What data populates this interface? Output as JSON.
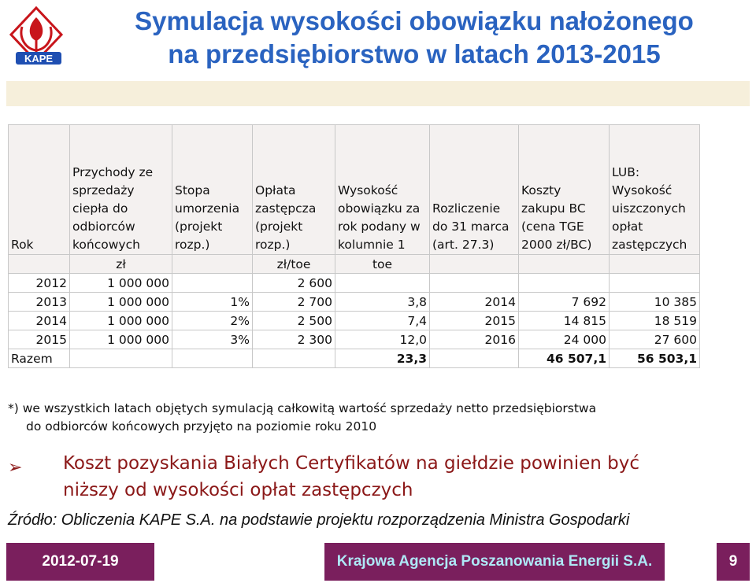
{
  "logo": {
    "text": "KAPE",
    "colors": {
      "red": "#c8151b",
      "blue": "#1f4fb2"
    }
  },
  "title": {
    "line1": "Symulacja wysokości obowiązku nałożonego",
    "line2": "na przedsiębiorstwo w latach 2013-2015"
  },
  "table": {
    "headers": [
      "Rok",
      "Przychody ze sprzedaży ciepła do odbiorców końcowych",
      "Stopa umorzenia (projekt rozp.)",
      "Opłata zastępcza (projekt rozp.)",
      "Wysokość obowiązku za rok podany w kolumnie 1",
      "Rozliczenie do 31 marca (art. 27.3)",
      "Koszty zakupu BC (cena TGE 2000 zł/BC)",
      "LUB: Wysokość uiszczonych opłat zastępczych"
    ],
    "units": [
      "",
      "zł",
      "",
      "zł/toe",
      "toe",
      "",
      "",
      ""
    ],
    "rows": [
      [
        "2012",
        "1 000 000",
        "",
        "2 600",
        "",
        "",
        "",
        ""
      ],
      [
        "2013",
        "1 000 000",
        "1%",
        "2 700",
        "3,8",
        "2014",
        "7 692",
        "10 385"
      ],
      [
        "2014",
        "1 000 000",
        "2%",
        "2 500",
        "7,4",
        "2015",
        "14 815",
        "18 519"
      ],
      [
        "2015",
        "1 000 000",
        "3%",
        "2 300",
        "12,0",
        "2016",
        "24 000",
        "27 600"
      ]
    ],
    "total": [
      "Razem",
      "",
      "",
      "",
      "23,3",
      "",
      "46 507,1",
      "56 503,1"
    ]
  },
  "note": {
    "line1": "*) we wszystkich latach objętych symulacją całkowitą wartość sprzedaży netto przedsiębiorstwa",
    "line2": "do odbiorców końcowych przyjęto na poziomie roku 2010"
  },
  "bullet": {
    "icon": "arrow-bullet",
    "line1": "Koszt pozyskania Białych Certyfikatów na giełdzie powinien być",
    "line2": "niższy od wysokości opłat zastępczych"
  },
  "source": "Źródło: Obliczenia KAPE S.A. na podstawie projektu rozporządzenia Ministra Gospodarki",
  "footer": {
    "date": "2012-07-19",
    "org": "Krajowa Agencja Poszanowania Energii S.A.",
    "page": "9"
  },
  "colors": {
    "title": "#2a63c0",
    "footer_bg": "#7a1f5d",
    "accent_text": "#8b1818",
    "header_bg": "#f4f1f0"
  }
}
